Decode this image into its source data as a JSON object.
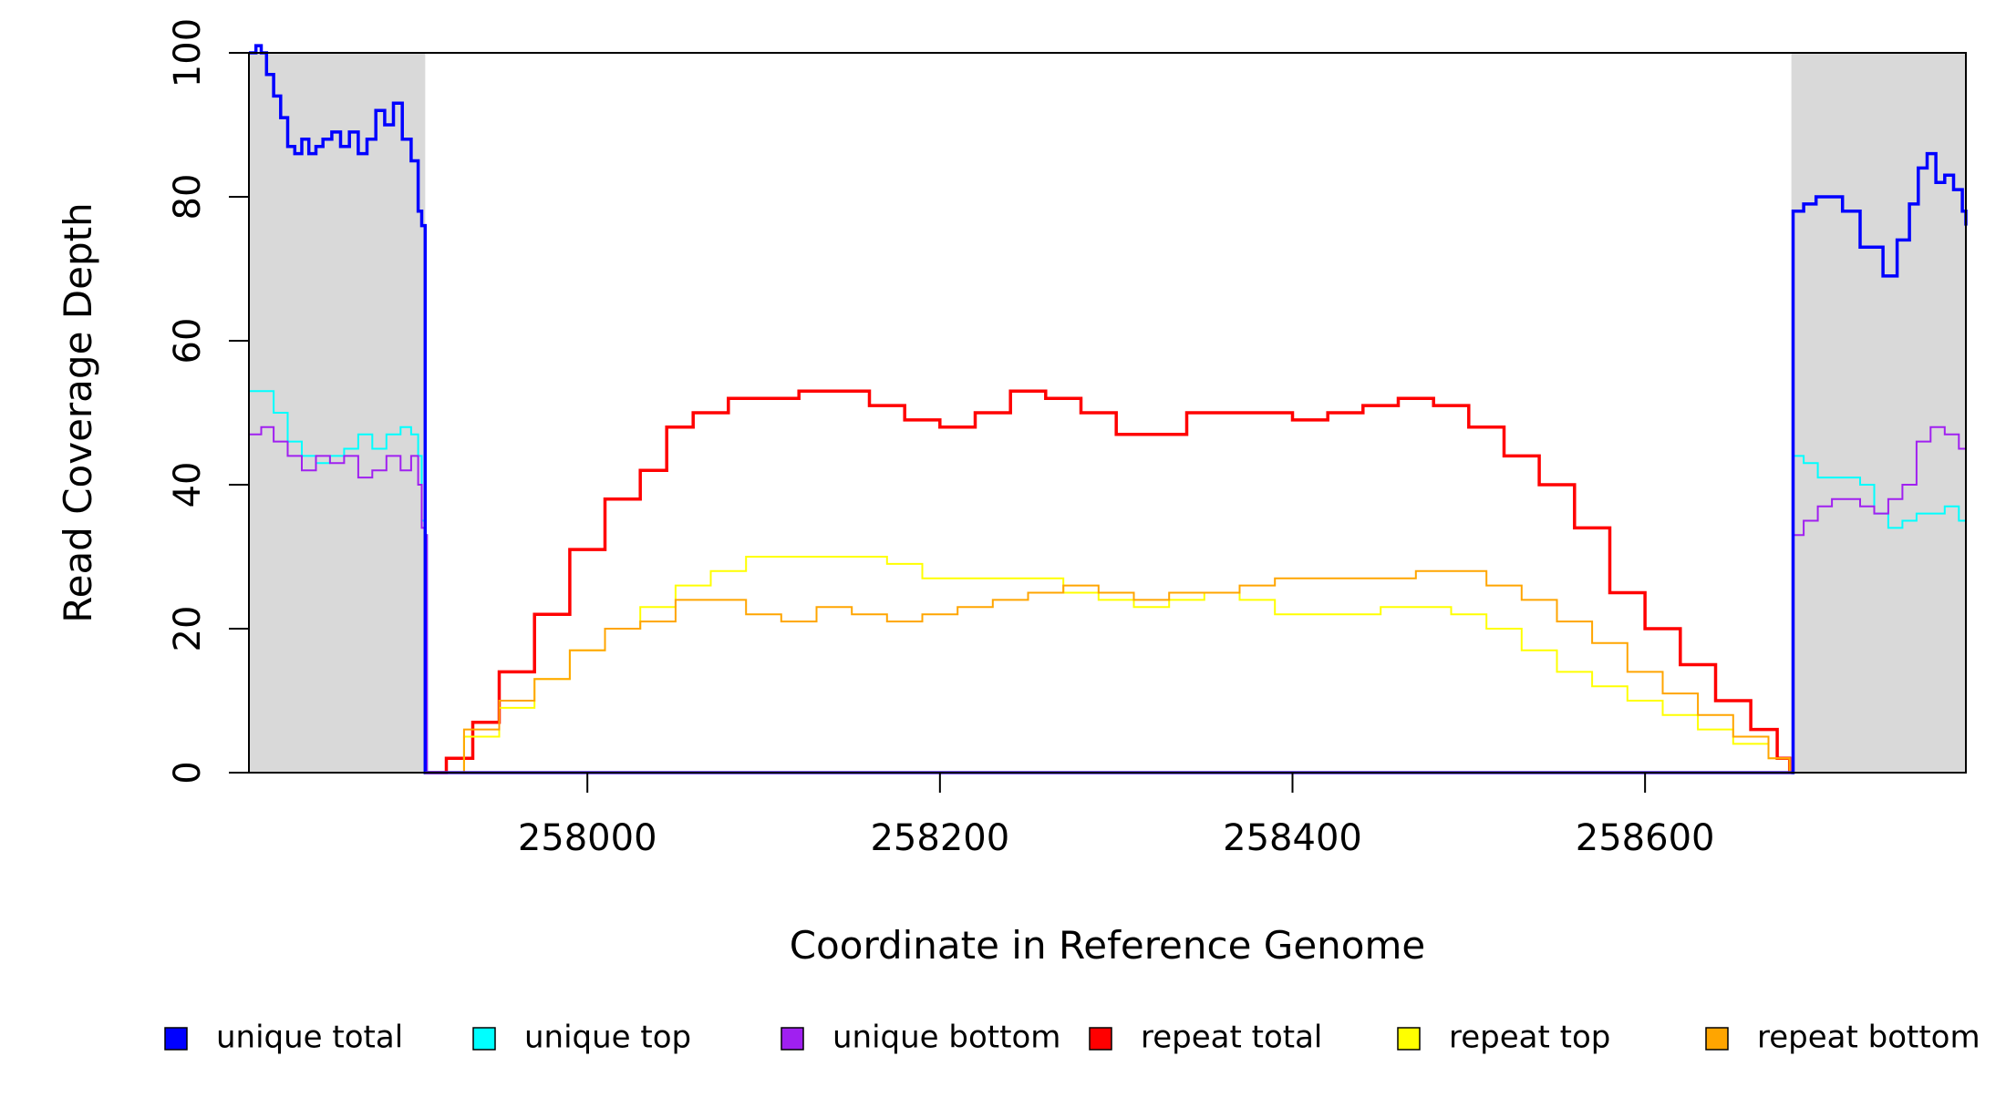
{
  "chart_data": {
    "type": "line",
    "title": "",
    "xlabel": "Coordinate in Reference Genome",
    "ylabel": "Read Coverage Depth",
    "xlim": [
      257808,
      258782
    ],
    "ylim": [
      0,
      100
    ],
    "x_ticks": [
      258000,
      258200,
      258400,
      258600
    ],
    "x_tick_labels": [
      "258000",
      "258200",
      "258400",
      "258600"
    ],
    "y_ticks": [
      0,
      20,
      40,
      60,
      80,
      100
    ],
    "y_tick_labels": [
      "0",
      "20",
      "40",
      "60",
      "80",
      "100"
    ],
    "grid": false,
    "legend_position": "bottom",
    "shaded_regions": [
      {
        "x0": 257808,
        "x1": 257908,
        "color": "#d9d9d9"
      },
      {
        "x0": 258683,
        "x1": 258782,
        "color": "#d9d9d9"
      }
    ],
    "series": [
      {
        "name": "unique total",
        "color": "#0000ff",
        "x": [
          257808,
          257812,
          257815,
          257818,
          257822,
          257826,
          257830,
          257834,
          257838,
          257842,
          257846,
          257850,
          257855,
          257860,
          257865,
          257870,
          257875,
          257880,
          257885,
          257890,
          257895,
          257900,
          257904,
          257906,
          257908,
          257909,
          258683,
          258684,
          258690,
          258697,
          258704,
          258712,
          258722,
          258735,
          258743,
          258750,
          258755,
          258760,
          258765,
          258770,
          258775,
          258780,
          258782
        ],
        "y": [
          100,
          101,
          100,
          97,
          94,
          91,
          87,
          86,
          88,
          86,
          87,
          88,
          89,
          87,
          89,
          86,
          88,
          92,
          90,
          93,
          88,
          85,
          78,
          76,
          0,
          0,
          0,
          78,
          79,
          80,
          80,
          78,
          73,
          69,
          74,
          79,
          84,
          86,
          82,
          83,
          81,
          78,
          76
        ]
      },
      {
        "name": "unique top",
        "color": "#00ffff",
        "x": [
          257808,
          257815,
          257822,
          257830,
          257838,
          257846,
          257854,
          257862,
          257870,
          257878,
          257886,
          257894,
          257900,
          257904,
          257906,
          257908,
          257909,
          258683,
          258684,
          258690,
          258698,
          258706,
          258714,
          258722,
          258730,
          258738,
          258746,
          258754,
          258762,
          258770,
          258778,
          258782
        ],
        "y": [
          53,
          53,
          50,
          46,
          44,
          43,
          44,
          45,
          47,
          45,
          47,
          48,
          47,
          44,
          35,
          33,
          0,
          0,
          44,
          43,
          41,
          41,
          41,
          40,
          36,
          34,
          35,
          36,
          36,
          37,
          35,
          33
        ]
      },
      {
        "name": "unique bottom",
        "color": "#a020f0",
        "x": [
          257808,
          257815,
          257822,
          257830,
          257838,
          257846,
          257854,
          257862,
          257870,
          257878,
          257886,
          257894,
          257900,
          257904,
          257906,
          257908,
          257909,
          258683,
          258684,
          258690,
          258698,
          258706,
          258714,
          258722,
          258730,
          258738,
          258746,
          258754,
          258762,
          258770,
          258778,
          258782
        ],
        "y": [
          47,
          48,
          46,
          44,
          42,
          44,
          43,
          44,
          41,
          42,
          44,
          42,
          44,
          40,
          34,
          33,
          0,
          0,
          33,
          35,
          37,
          38,
          38,
          37,
          36,
          38,
          40,
          46,
          48,
          47,
          45,
          42
        ]
      },
      {
        "name": "repeat total",
        "color": "#ff0000",
        "x": [
          257908,
          257920,
          257935,
          257950,
          257970,
          257990,
          258010,
          258030,
          258045,
          258060,
          258080,
          258100,
          258120,
          258140,
          258160,
          258180,
          258200,
          258220,
          258240,
          258260,
          258280,
          258300,
          258320,
          258340,
          258360,
          258380,
          258400,
          258420,
          258440,
          258460,
          258480,
          258500,
          258520,
          258540,
          258560,
          258580,
          258600,
          258620,
          258640,
          258660,
          258675,
          258682
        ],
        "y": [
          0,
          2,
          7,
          14,
          22,
          31,
          38,
          42,
          48,
          50,
          52,
          52,
          53,
          53,
          51,
          49,
          48,
          50,
          53,
          52,
          50,
          47,
          47,
          50,
          50,
          50,
          49,
          50,
          51,
          52,
          51,
          48,
          44,
          40,
          34,
          25,
          20,
          15,
          10,
          6,
          2,
          0
        ]
      },
      {
        "name": "repeat top",
        "color": "#ffff00",
        "x": [
          257908,
          257930,
          257950,
          257970,
          257990,
          258010,
          258030,
          258050,
          258070,
          258090,
          258110,
          258130,
          258150,
          258170,
          258190,
          258210,
          258230,
          258250,
          258270,
          258290,
          258310,
          258330,
          258350,
          258370,
          258390,
          258410,
          258430,
          258450,
          258470,
          258490,
          258510,
          258530,
          258550,
          258570,
          258590,
          258610,
          258630,
          258650,
          258670,
          258682
        ],
        "y": [
          0,
          5,
          9,
          13,
          17,
          20,
          23,
          26,
          28,
          30,
          30,
          30,
          30,
          29,
          27,
          27,
          27,
          27,
          25,
          24,
          23,
          24,
          25,
          24,
          22,
          22,
          22,
          23,
          23,
          22,
          20,
          17,
          14,
          12,
          10,
          8,
          6,
          4,
          2,
          0
        ]
      },
      {
        "name": "repeat bottom",
        "color": "#ffa500",
        "x": [
          257908,
          257930,
          257950,
          257970,
          257990,
          258010,
          258030,
          258050,
          258070,
          258090,
          258110,
          258130,
          258150,
          258170,
          258190,
          258210,
          258230,
          258250,
          258270,
          258290,
          258310,
          258330,
          258350,
          258370,
          258390,
          258410,
          258430,
          258450,
          258470,
          258490,
          258510,
          258530,
          258550,
          258570,
          258590,
          258610,
          258630,
          258650,
          258670,
          258682
        ],
        "y": [
          0,
          6,
          10,
          13,
          17,
          20,
          21,
          24,
          24,
          22,
          21,
          23,
          22,
          21,
          22,
          23,
          24,
          25,
          26,
          25,
          24,
          25,
          25,
          26,
          27,
          27,
          27,
          27,
          28,
          28,
          26,
          24,
          21,
          18,
          14,
          11,
          8,
          5,
          2,
          0
        ]
      }
    ]
  }
}
